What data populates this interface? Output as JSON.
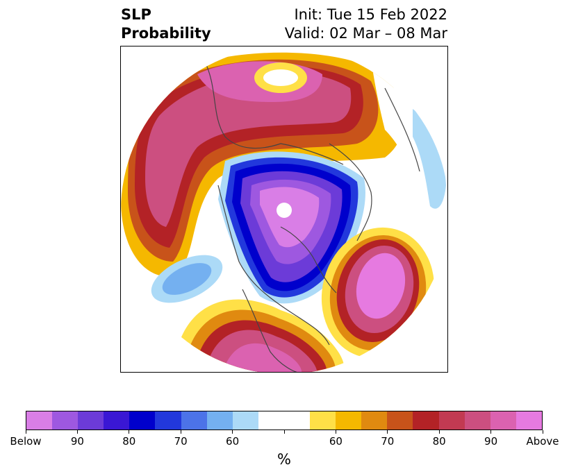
{
  "title": {
    "left_line1": "SLP",
    "left_line2": "Probability",
    "right_line1": "Init: Tue 15 Feb 2022",
    "right_line2": "Valid: 02 Mar – 08 Mar"
  },
  "colorbar": {
    "colors": [
      "#d97ee6",
      "#9e58e0",
      "#6c3bd8",
      "#3a17d4",
      "#0000cc",
      "#2238dc",
      "#4c73e8",
      "#74b0f0",
      "#acdaf7",
      "#ffffff",
      "#ffffff",
      "#ffe047",
      "#f5b800",
      "#e08a10",
      "#c8531a",
      "#b32226",
      "#c23a52",
      "#cc4f80",
      "#db62b0",
      "#e67ae0"
    ],
    "labels": [
      "Below",
      "90",
      "80",
      "70",
      "60",
      "",
      "60",
      "70",
      "80",
      "90",
      "Above"
    ],
    "units": "%"
  }
}
